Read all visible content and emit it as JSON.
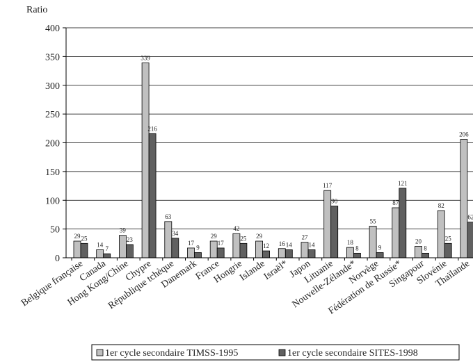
{
  "chart_data": {
    "type": "bar",
    "ylabel": "Ratio",
    "ylim": [
      0,
      400
    ],
    "yticks": [
      0,
      50,
      100,
      150,
      200,
      250,
      300,
      350,
      400
    ],
    "grid": true,
    "legend_position": "bottom",
    "categories": [
      "Belgique française",
      "Canada",
      "Hong Kong/Chine",
      "Chypre",
      "République tchèque",
      "Danemark",
      "France",
      "Hongrie",
      "Islande",
      "Israël*",
      "Japon",
      "Lituanie",
      "Nouvelle-Zélande*",
      "Norvège",
      "Fédération de Russie*",
      "Singapour",
      "Slovénie",
      "Thaïlande"
    ],
    "series": [
      {
        "name": "1er cycle secondaire TIMSS-1995",
        "color": "#c0c0c0",
        "values": [
          29,
          14,
          39,
          339,
          63,
          17,
          29,
          42,
          29,
          16,
          27,
          117,
          18,
          55,
          87,
          20,
          82,
          206
        ]
      },
      {
        "name": "1er cycle secondaire SITES-1998",
        "color": "#606060",
        "values": [
          25,
          7,
          23,
          216,
          34,
          9,
          17,
          25,
          12,
          14,
          14,
          90,
          8,
          9,
          121,
          8,
          25,
          62
        ]
      }
    ]
  }
}
